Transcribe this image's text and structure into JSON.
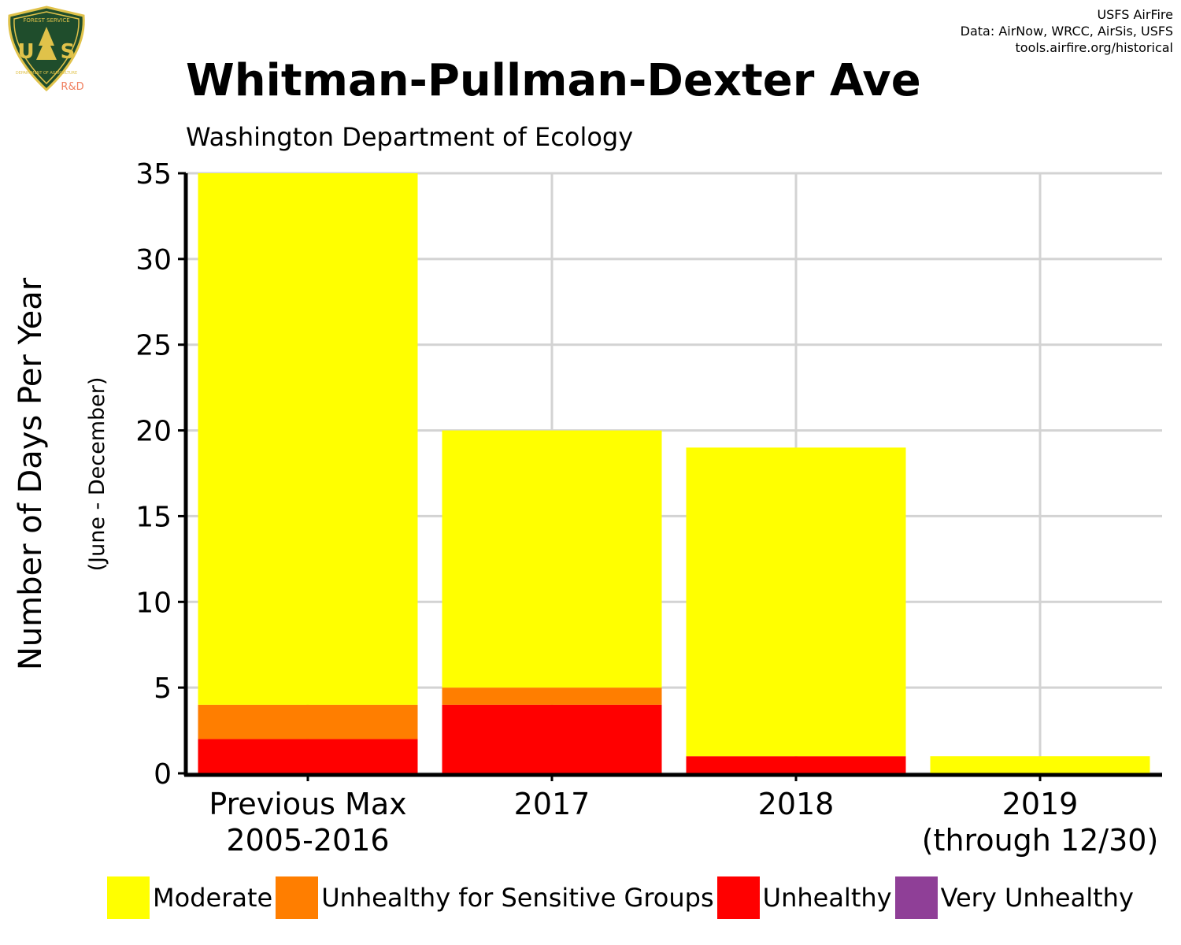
{
  "header": {
    "title": "Whitman-Pullman-Dexter Ave",
    "subtitle": "Washington Department of Ecology",
    "credits": [
      "USFS AirFire",
      "Data: AirNow, WRCC, AirSis, USFS",
      "tools.airfire.org/historical"
    ],
    "logo": {
      "icon": "usfs-shield-logo",
      "text_top": "FOREST SERVICE",
      "text_main": "US",
      "text_bottom": "DEPARTMENT OF AGRICULTURE",
      "tag": "R&D"
    }
  },
  "chart_data": {
    "type": "bar",
    "stacked": true,
    "ylabel": "Number of Days Per Year",
    "ylabel_sub": "(June - December)",
    "ylim": [
      0,
      35
    ],
    "yticks": [
      0,
      5,
      10,
      15,
      20,
      25,
      30,
      35
    ],
    "grid": true,
    "legend_position": "bottom",
    "categories": [
      [
        "Previous Max",
        "2005-2016"
      ],
      [
        "2017"
      ],
      [
        "2018"
      ],
      [
        "2019",
        "(through 12/30)"
      ]
    ],
    "series": [
      {
        "name": "Unhealthy",
        "color": "#ff0000",
        "values": [
          2,
          4,
          1,
          0
        ]
      },
      {
        "name": "Unhealthy for Sensitive Groups",
        "color": "#ff7e00",
        "values": [
          2,
          1,
          0,
          0
        ]
      },
      {
        "name": "Moderate",
        "color": "#ffff00",
        "values": [
          31,
          15,
          18,
          1
        ]
      },
      {
        "name": "Very Unhealthy",
        "color": "#8f3f97",
        "values": [
          0,
          0,
          0,
          0
        ]
      }
    ],
    "legend_order": [
      "Moderate",
      "Unhealthy for Sensitive Groups",
      "Unhealthy",
      "Very Unhealthy"
    ]
  }
}
